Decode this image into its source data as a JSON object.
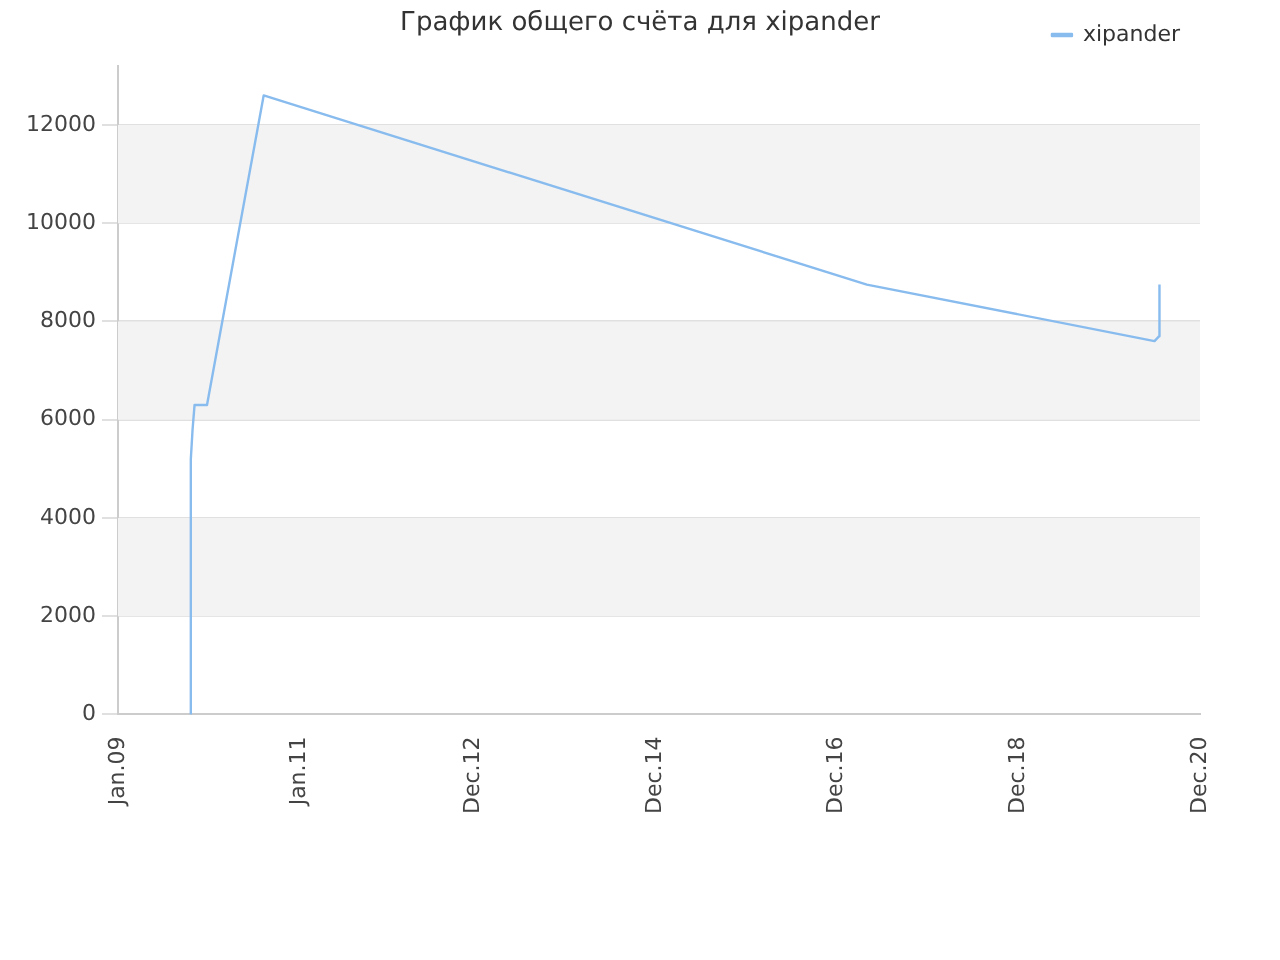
{
  "chart_data": {
    "type": "line",
    "title": "График общего счёта для xipander",
    "x": [
      "2009-10-20",
      "2009-10-21",
      "2009-10-28",
      "2009-11-05",
      "2009-11-20",
      "2009-12-25",
      "2010-08-10",
      "2017-04-01",
      "2020-06-01",
      "2020-06-20",
      "2020-06-21"
    ],
    "series": [
      {
        "name": "xipander",
        "color": "#88bbee",
        "values": [
          0,
          5200,
          5800,
          6300,
          6300,
          6300,
          12600,
          8750,
          7600,
          7700,
          8750
        ]
      }
    ],
    "xlim": [
      "2009-01-01",
      "2020-12-01"
    ],
    "xticks": [
      {
        "value": "2009-01-01",
        "label": "Jan.09"
      },
      {
        "value": "2011-01-01",
        "label": "Jan.11"
      },
      {
        "value": "2012-12-01",
        "label": "Dec.12"
      },
      {
        "value": "2014-12-01",
        "label": "Dec.14"
      },
      {
        "value": "2016-12-01",
        "label": "Dec.16"
      },
      {
        "value": "2018-12-01",
        "label": "Dec.18"
      },
      {
        "value": "2020-12-01",
        "label": "Dec.20"
      }
    ],
    "ylim": [
      0,
      13200
    ],
    "yticks": [
      0,
      2000,
      4000,
      6000,
      8000,
      10000,
      12000
    ],
    "grid": "y",
    "legend": "top right",
    "marker": "none",
    "line_style": "solid"
  }
}
